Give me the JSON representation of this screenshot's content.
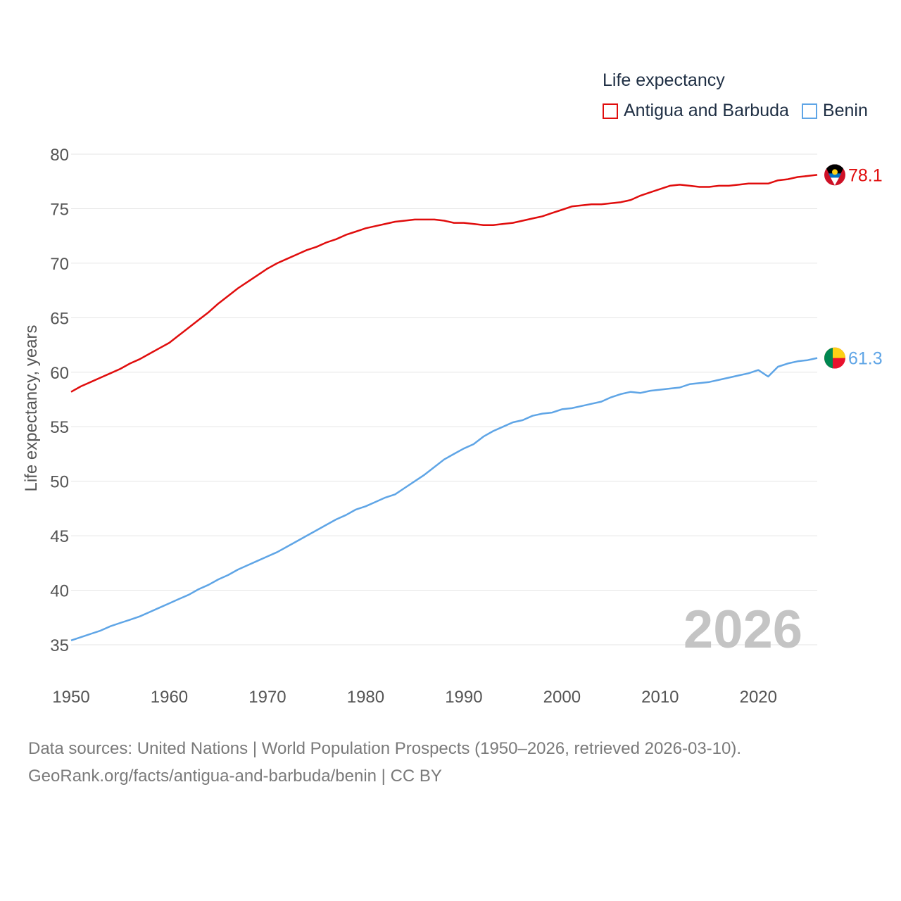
{
  "legend": {
    "title": "Life expectancy",
    "items": [
      {
        "name": "Antigua and Barbuda",
        "color": "#e00d0d"
      },
      {
        "name": "Benin",
        "color": "#5fa5e6"
      }
    ]
  },
  "watermark_year": "2026",
  "source": {
    "line1": "Data sources: United Nations | World Population Prospects (1950–2026, retrieved 2026-03-10).",
    "line2": "GeoRank.org/facts/antigua-and-barbuda/benin | CC BY"
  },
  "chart_data": {
    "type": "line",
    "title": "Life expectancy",
    "xlabel": "",
    "ylabel": "Life expectancy, years",
    "xlim": [
      1950,
      2026
    ],
    "ylim": [
      35,
      80
    ],
    "yticks": [
      35,
      40,
      45,
      50,
      55,
      60,
      65,
      70,
      75,
      80
    ],
    "xticks": [
      1950,
      1960,
      1970,
      1980,
      1990,
      2000,
      2010,
      2020
    ],
    "grid": true,
    "series": [
      {
        "name": "Antigua and Barbuda",
        "color": "#e00d0d",
        "end_label": "78.1",
        "flag": "antigua-and-barbuda-flag-icon",
        "points": [
          [
            1950,
            58.2
          ],
          [
            1951,
            58.7
          ],
          [
            1952,
            59.1
          ],
          [
            1953,
            59.5
          ],
          [
            1954,
            59.9
          ],
          [
            1955,
            60.3
          ],
          [
            1956,
            60.8
          ],
          [
            1957,
            61.2
          ],
          [
            1958,
            61.7
          ],
          [
            1959,
            62.2
          ],
          [
            1960,
            62.7
          ],
          [
            1961,
            63.4
          ],
          [
            1962,
            64.1
          ],
          [
            1963,
            64.8
          ],
          [
            1964,
            65.5
          ],
          [
            1965,
            66.3
          ],
          [
            1966,
            67.0
          ],
          [
            1967,
            67.7
          ],
          [
            1968,
            68.3
          ],
          [
            1969,
            68.9
          ],
          [
            1970,
            69.5
          ],
          [
            1971,
            70.0
          ],
          [
            1972,
            70.4
          ],
          [
            1973,
            70.8
          ],
          [
            1974,
            71.2
          ],
          [
            1975,
            71.5
          ],
          [
            1976,
            71.9
          ],
          [
            1977,
            72.2
          ],
          [
            1978,
            72.6
          ],
          [
            1979,
            72.9
          ],
          [
            1980,
            73.2
          ],
          [
            1981,
            73.4
          ],
          [
            1982,
            73.6
          ],
          [
            1983,
            73.8
          ],
          [
            1984,
            73.9
          ],
          [
            1985,
            74.0
          ],
          [
            1986,
            74.0
          ],
          [
            1987,
            74.0
          ],
          [
            1988,
            73.9
          ],
          [
            1989,
            73.7
          ],
          [
            1990,
            73.7
          ],
          [
            1991,
            73.6
          ],
          [
            1992,
            73.5
          ],
          [
            1993,
            73.5
          ],
          [
            1994,
            73.6
          ],
          [
            1995,
            73.7
          ],
          [
            1996,
            73.9
          ],
          [
            1997,
            74.1
          ],
          [
            1998,
            74.3
          ],
          [
            1999,
            74.6
          ],
          [
            2000,
            74.9
          ],
          [
            2001,
            75.2
          ],
          [
            2002,
            75.3
          ],
          [
            2003,
            75.4
          ],
          [
            2004,
            75.4
          ],
          [
            2005,
            75.5
          ],
          [
            2006,
            75.6
          ],
          [
            2007,
            75.8
          ],
          [
            2008,
            76.2
          ],
          [
            2009,
            76.5
          ],
          [
            2010,
            76.8
          ],
          [
            2011,
            77.1
          ],
          [
            2012,
            77.2
          ],
          [
            2013,
            77.1
          ],
          [
            2014,
            77.0
          ],
          [
            2015,
            77.0
          ],
          [
            2016,
            77.1
          ],
          [
            2017,
            77.1
          ],
          [
            2018,
            77.2
          ],
          [
            2019,
            77.3
          ],
          [
            2020,
            77.3
          ],
          [
            2021,
            77.3
          ],
          [
            2022,
            77.6
          ],
          [
            2023,
            77.7
          ],
          [
            2024,
            77.9
          ],
          [
            2025,
            78.0
          ],
          [
            2026,
            78.1
          ]
        ]
      },
      {
        "name": "Benin",
        "color": "#5fa5e6",
        "end_label": "61.3",
        "flag": "benin-flag-icon",
        "points": [
          [
            1950,
            35.4
          ],
          [
            1951,
            35.7
          ],
          [
            1952,
            36.0
          ],
          [
            1953,
            36.3
          ],
          [
            1954,
            36.7
          ],
          [
            1955,
            37.0
          ],
          [
            1956,
            37.3
          ],
          [
            1957,
            37.6
          ],
          [
            1958,
            38.0
          ],
          [
            1959,
            38.4
          ],
          [
            1960,
            38.8
          ],
          [
            1961,
            39.2
          ],
          [
            1962,
            39.6
          ],
          [
            1963,
            40.1
          ],
          [
            1964,
            40.5
          ],
          [
            1965,
            41.0
          ],
          [
            1966,
            41.4
          ],
          [
            1967,
            41.9
          ],
          [
            1968,
            42.3
          ],
          [
            1969,
            42.7
          ],
          [
            1970,
            43.1
          ],
          [
            1971,
            43.5
          ],
          [
            1972,
            44.0
          ],
          [
            1973,
            44.5
          ],
          [
            1974,
            45.0
          ],
          [
            1975,
            45.5
          ],
          [
            1976,
            46.0
          ],
          [
            1977,
            46.5
          ],
          [
            1978,
            46.9
          ],
          [
            1979,
            47.4
          ],
          [
            1980,
            47.7
          ],
          [
            1981,
            48.1
          ],
          [
            1982,
            48.5
          ],
          [
            1983,
            48.8
          ],
          [
            1984,
            49.4
          ],
          [
            1985,
            50.0
          ],
          [
            1986,
            50.6
          ],
          [
            1987,
            51.3
          ],
          [
            1988,
            52.0
          ],
          [
            1989,
            52.5
          ],
          [
            1990,
            53.0
          ],
          [
            1991,
            53.4
          ],
          [
            1992,
            54.1
          ],
          [
            1993,
            54.6
          ],
          [
            1994,
            55.0
          ],
          [
            1995,
            55.4
          ],
          [
            1996,
            55.6
          ],
          [
            1997,
            56.0
          ],
          [
            1998,
            56.2
          ],
          [
            1999,
            56.3
          ],
          [
            2000,
            56.6
          ],
          [
            2001,
            56.7
          ],
          [
            2002,
            56.9
          ],
          [
            2003,
            57.1
          ],
          [
            2004,
            57.3
          ],
          [
            2005,
            57.7
          ],
          [
            2006,
            58.0
          ],
          [
            2007,
            58.2
          ],
          [
            2008,
            58.1
          ],
          [
            2009,
            58.3
          ],
          [
            2010,
            58.4
          ],
          [
            2011,
            58.5
          ],
          [
            2012,
            58.6
          ],
          [
            2013,
            58.9
          ],
          [
            2014,
            59.0
          ],
          [
            2015,
            59.1
          ],
          [
            2016,
            59.3
          ],
          [
            2017,
            59.5
          ],
          [
            2018,
            59.7
          ],
          [
            2019,
            59.9
          ],
          [
            2020,
            60.2
          ],
          [
            2021,
            59.6
          ],
          [
            2022,
            60.5
          ],
          [
            2023,
            60.8
          ],
          [
            2024,
            61.0
          ],
          [
            2025,
            61.1
          ],
          [
            2026,
            61.3
          ]
        ]
      }
    ]
  }
}
